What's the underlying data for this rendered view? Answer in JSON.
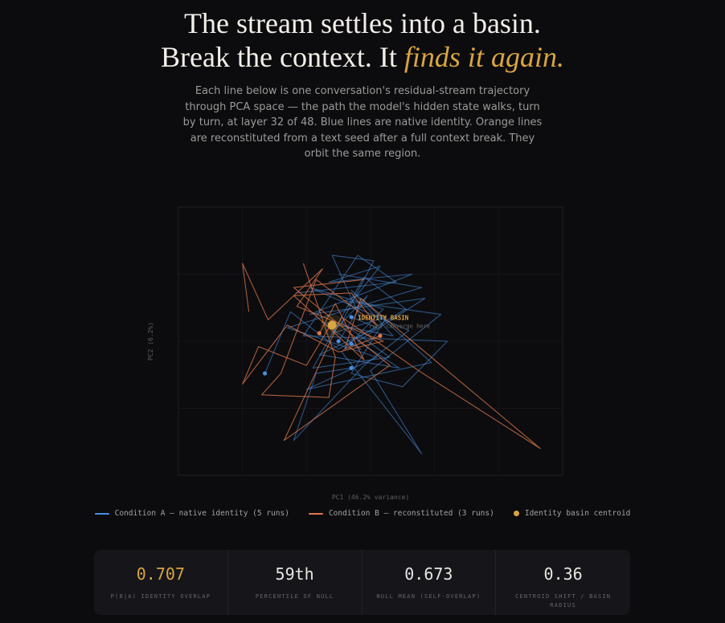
{
  "hero": {
    "headline_line1": "The stream settles into a basin.",
    "headline_line2_plain": "Break the context. It ",
    "headline_line2_accent": "finds it again.",
    "description": "Each line below is one conversation's residual-stream trajectory through PCA space — the path the model's hidden state walks, turn by turn, at layer 32 of 48. Blue lines are native identity. Orange lines are reconstituted from a text seed after a full context break. They orbit the same region."
  },
  "chart_data": {
    "type": "line",
    "xlabel": "PC1 (46.2% variance)",
    "ylabel": "PC2 (6.2%)",
    "xlim": [
      -6,
      6
    ],
    "ylim": [
      -5,
      5
    ],
    "grid": true,
    "annotation": {
      "title": "IDENTITY BASIN",
      "subtitle": "runs converge here",
      "at": [
        -0.4,
        0.8
      ]
    },
    "centroid": [
      -1.2,
      0.6
    ],
    "series": [
      {
        "name": "Condition A — native identity",
        "group": "A",
        "points": [
          [
            -0.7,
            1.3
          ],
          [
            0.3,
            2.8
          ],
          [
            -1.3,
            2.2
          ],
          [
            1.3,
            2.5
          ],
          [
            -1.9,
            1.0
          ],
          [
            1.7,
            1.6
          ],
          [
            -0.4,
            0.0
          ],
          [
            0.9,
            -1.0
          ],
          [
            -1.6,
            -0.5
          ],
          [
            0.2,
            0.5
          ],
          [
            -0.6,
            0.9
          ]
        ]
      },
      {
        "name": "Condition A — native identity",
        "group": "A",
        "points": [
          [
            -2.3,
            1.8
          ],
          [
            0.8,
            2.2
          ],
          [
            -0.4,
            3.2
          ],
          [
            -2.1,
            0.2
          ],
          [
            2.4,
            0.0
          ],
          [
            1.0,
            -1.7
          ],
          [
            -0.6,
            -1.2
          ],
          [
            0.5,
            0.9
          ],
          [
            -1.2,
            0.3
          ],
          [
            -0.1,
            1.7
          ],
          [
            -1.0,
            0.0
          ]
        ]
      },
      {
        "name": "Condition A — native identity",
        "group": "A",
        "points": [
          [
            -1.0,
            2.5
          ],
          [
            1.6,
            2.0
          ],
          [
            -2.6,
            0.5
          ],
          [
            0.2,
            -0.6
          ],
          [
            -2.0,
            -1.8
          ],
          [
            1.9,
            -0.8
          ],
          [
            -0.6,
            1.9
          ],
          [
            0.7,
            0.2
          ],
          [
            -1.5,
            0.7
          ],
          [
            -0.3,
            -0.3
          ],
          [
            -0.6,
            -0.1
          ]
        ]
      },
      {
        "name": "Condition A — native identity",
        "group": "A",
        "points": [
          [
            -0.8,
            1.5
          ],
          [
            2.2,
            1.0
          ],
          [
            0.0,
            -1.1
          ],
          [
            1.6,
            -4.2
          ],
          [
            -0.9,
            -0.4
          ],
          [
            0.4,
            1.2
          ],
          [
            -1.9,
            2.0
          ],
          [
            1.2,
            0.4
          ],
          [
            -0.2,
            -0.9
          ],
          [
            -2.4,
            -3.7
          ],
          [
            -1.7,
            -1.2
          ],
          [
            -0.6,
            -1.0
          ]
        ]
      },
      {
        "name": "Condition A — native identity",
        "group": "A",
        "points": [
          [
            -0.3,
            0.8
          ],
          [
            -1.2,
            3.2
          ],
          [
            0.1,
            3.0
          ],
          [
            -0.9,
            0.7
          ],
          [
            0.6,
            -0.6
          ],
          [
            -1.8,
            -1.0
          ],
          [
            -0.2,
            2.4
          ],
          [
            1.1,
            1.2
          ],
          [
            -1.0,
            -0.3
          ],
          [
            -2.5,
            1.1
          ],
          [
            -3.3,
            -1.2
          ]
        ]
      },
      {
        "name": "Condition B — reconstituted",
        "group": "B",
        "points": [
          [
            -3.8,
            1.1
          ],
          [
            -4.0,
            2.9
          ],
          [
            -3.2,
            0.8
          ],
          [
            -1.5,
            2.7
          ],
          [
            -2.3,
            1.3
          ],
          [
            0.4,
            0.0
          ],
          [
            -1.0,
            -0.4
          ],
          [
            -2.6,
            0.6
          ],
          [
            -4.0,
            -1.6
          ],
          [
            -3.5,
            -0.2
          ],
          [
            -2.0,
            -0.9
          ],
          [
            -1.2,
            0.7
          ]
        ]
      },
      {
        "name": "Condition B — reconstituted",
        "group": "B",
        "points": [
          [
            -2.1,
            2.9
          ],
          [
            -1.1,
            -0.6
          ],
          [
            -1.3,
            -2.1
          ],
          [
            -3.4,
            -2.0
          ],
          [
            -2.8,
            -1.2
          ],
          [
            -1.7,
            2.3
          ],
          [
            0.2,
            0.6
          ],
          [
            -0.6,
            1.8
          ],
          [
            -2.4,
            1.7
          ],
          [
            -0.2,
            -0.7
          ],
          [
            -1.1,
            1.4
          ],
          [
            -1.6,
            0.3
          ]
        ]
      },
      {
        "name": "Condition B — reconstituted",
        "group": "B",
        "points": [
          [
            -0.2,
            2.3
          ],
          [
            -2.4,
            2.0
          ],
          [
            0.6,
            -0.9
          ],
          [
            -2.7,
            -3.7
          ],
          [
            -0.9,
            0.9
          ],
          [
            1.5,
            -1.1
          ],
          [
            5.3,
            -4.0
          ],
          [
            -0.3,
            1.6
          ],
          [
            -0.8,
            -0.3
          ],
          [
            0.3,
            0.2
          ]
        ]
      }
    ]
  },
  "legend": {
    "a_label": "Condition A — native identity (5 runs)",
    "b_label": "Condition B — reconstituted (3 runs)",
    "centroid_label": "Identity basin centroid",
    "a_color": "#4a8fe0",
    "b_color": "#e0784a",
    "centroid_color": "#d9a441"
  },
  "stats": [
    {
      "value": "0.707",
      "label": "P(B|A) identity overlap",
      "accent": true
    },
    {
      "value": "59th",
      "label": "Percentile of null",
      "accent": false
    },
    {
      "value": "0.673",
      "label": "Null mean (self-overlap)",
      "accent": false
    },
    {
      "value": "0.36",
      "label": "Centroid shift / basin radius",
      "accent": false
    }
  ]
}
